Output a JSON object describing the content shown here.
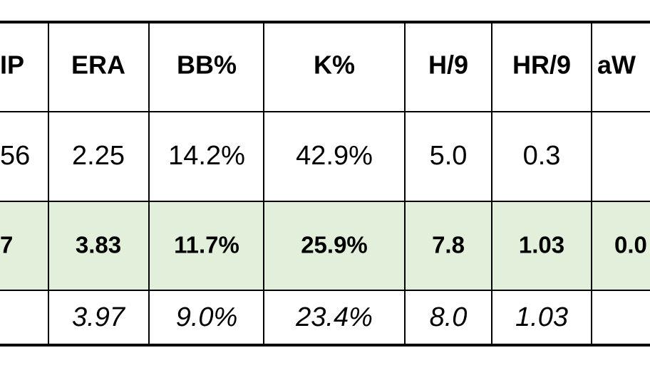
{
  "table": {
    "header": [
      "IP",
      "ERA",
      "BB%",
      "K%",
      "H/9",
      "HR/9",
      "aW"
    ],
    "rows": [
      [
        "56",
        "2.25",
        "14.2%",
        "42.9%",
        "5.0",
        "0.3",
        null
      ],
      [
        "7",
        "3.83",
        "11.7%",
        "25.9%",
        "7.8",
        "1.03",
        "0.0"
      ],
      [
        null,
        "3.97",
        "9.0%",
        "23.4%",
        "8.0",
        "1.03",
        null
      ]
    ]
  }
}
